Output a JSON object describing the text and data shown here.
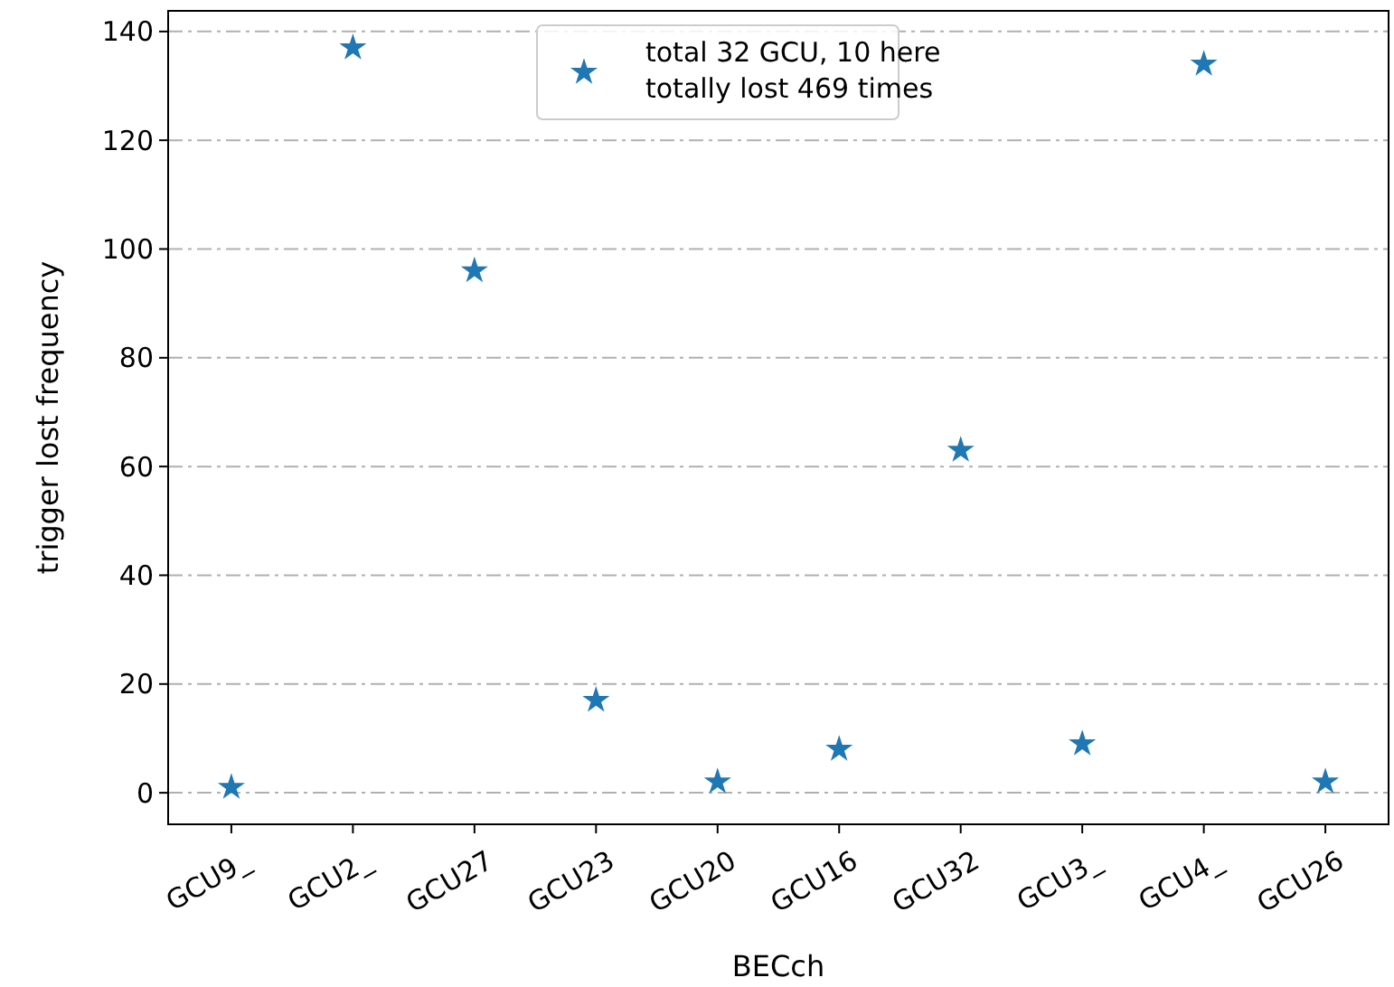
{
  "chart_data": {
    "type": "scatter",
    "xlabel": "BECch",
    "ylabel": "trigger lost frequency",
    "categories": [
      "GCU9_",
      "GCU2_",
      "GCU27",
      "GCU23",
      "GCU20",
      "GCU16",
      "GCU32",
      "GCU3_",
      "GCU4_",
      "GCU26"
    ],
    "series": [
      {
        "name": "total 32 GCU, 10 here\ntotally lost 469 times",
        "color": "#1f77b4",
        "values": [
          1,
          137,
          96,
          17,
          2,
          8,
          63,
          9,
          134,
          2
        ]
      }
    ],
    "ylim": [
      -5.8,
      143.8
    ],
    "yticks": [
      0,
      20,
      40,
      60,
      80,
      100,
      120,
      140
    ],
    "grid": "y",
    "legend": "top",
    "marker": "star"
  }
}
